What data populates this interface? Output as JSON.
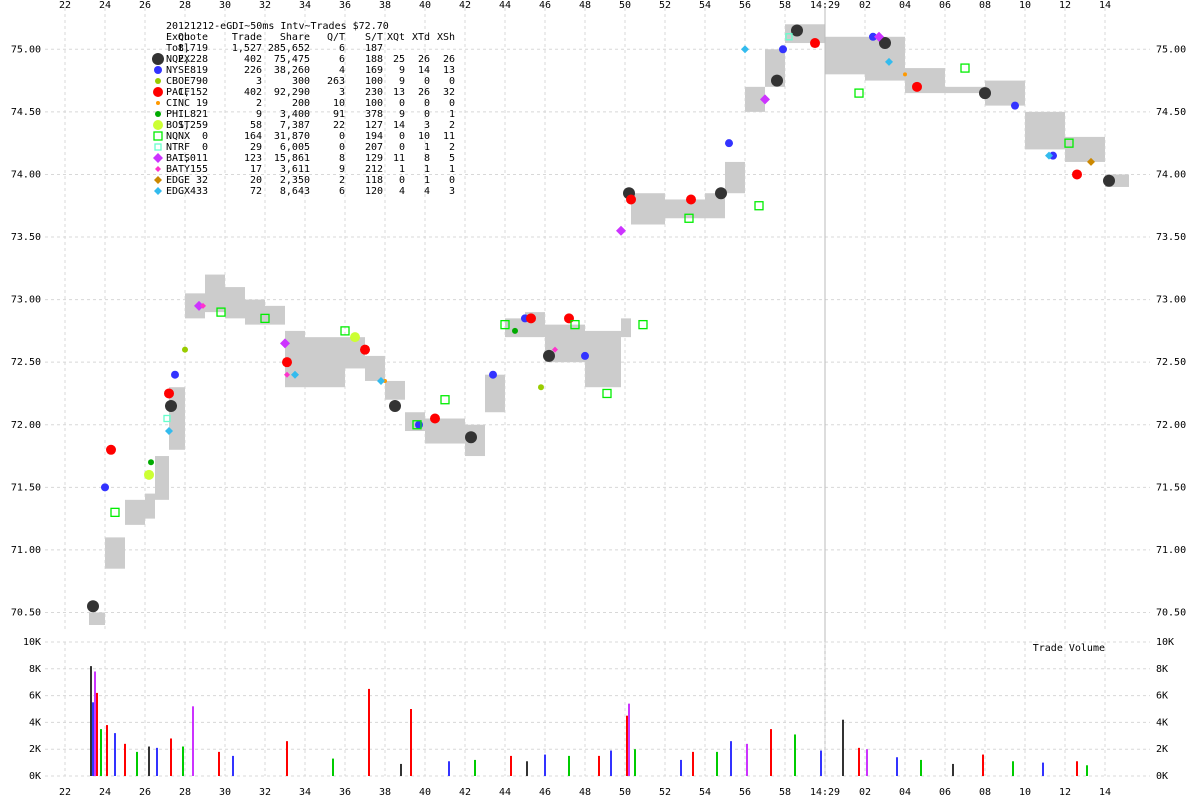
{
  "chart_data": [
    {
      "type": "scatter",
      "title": "20121212-eGDI~50ms Intv~Trades $72.70",
      "xlim": [
        21,
        76.25
      ],
      "xticks": [
        22,
        24,
        26,
        28,
        30,
        32,
        34,
        36,
        38,
        40,
        42,
        44,
        46,
        48,
        50,
        52,
        54,
        56,
        58,
        {
          "value": 60,
          "label": "14:29"
        },
        {
          "value": 62,
          "label": "02"
        },
        {
          "value": 64,
          "label": "04"
        },
        {
          "value": 66,
          "label": "06"
        },
        {
          "value": 68,
          "label": "08"
        },
        {
          "value": 70,
          "label": "10"
        },
        {
          "value": 72,
          "label": "12"
        },
        {
          "value": 74,
          "label": "14"
        }
      ],
      "marker_time": 60,
      "ylim": [
        70.36,
        75.33
      ],
      "yticks": [
        {
          "value": 70.5,
          "label": "70.50"
        },
        {
          "value": 71,
          "label": "71.00"
        },
        {
          "value": 71.5,
          "label": "71.50"
        },
        {
          "value": 72,
          "label": "72.00"
        },
        {
          "value": 72.5,
          "label": "72.50"
        },
        {
          "value": 73,
          "label": "73.00"
        },
        {
          "value": 73.5,
          "label": "73.50"
        },
        {
          "value": 74,
          "label": "74.00"
        },
        {
          "value": 74.5,
          "label": "74.50"
        },
        {
          "value": 75,
          "label": "75.00"
        }
      ],
      "grid": true,
      "band": {
        "color": "#cccccc",
        "x": [
          23.2,
          24,
          25,
          26,
          26.5,
          27.2,
          28,
          29,
          30,
          31,
          32,
          33,
          34,
          36,
          37,
          38,
          39,
          40,
          41,
          42,
          43,
          44,
          45,
          46,
          48,
          49.8,
          50.3,
          52,
          54,
          55,
          56,
          57,
          58,
          60,
          62,
          64,
          66,
          68,
          70,
          72,
          74,
          75
        ],
        "bid": [
          70.4,
          70.85,
          71.2,
          71.25,
          71.4,
          71.8,
          72.85,
          72.9,
          72.85,
          72.8,
          72.8,
          72.3,
          72.3,
          72.45,
          72.35,
          72.2,
          71.95,
          71.85,
          71.85,
          71.75,
          72.1,
          72.7,
          72.7,
          72.5,
          72.3,
          72.7,
          73.6,
          73.65,
          73.65,
          73.85,
          74.5,
          74.7,
          75.05,
          74.8,
          74.75,
          74.65,
          74.65,
          74.55,
          74.2,
          74.1,
          73.9,
          73.9
        ],
        "ask": [
          70.5,
          71.1,
          71.4,
          71.45,
          71.75,
          72.3,
          73.05,
          73.2,
          73.1,
          73.0,
          72.95,
          72.75,
          72.7,
          72.7,
          72.55,
          72.35,
          72.1,
          72.05,
          72.05,
          72.0,
          72.4,
          72.85,
          72.9,
          72.8,
          72.75,
          72.85,
          73.85,
          73.8,
          73.85,
          74.1,
          74.7,
          75.0,
          75.2,
          75.1,
          75.1,
          74.85,
          74.7,
          74.75,
          74.5,
          74.3,
          74.0,
          74.0
        ]
      },
      "legend_columns": [
        "Exch",
        "Quote",
        "Trade",
        "Share",
        "Q/T",
        "S/T",
        "XQt",
        "XTd",
        "XSh"
      ],
      "series": [
        {
          "cells": [
            "Totl",
            "8,719",
            "1,527",
            "285,652",
            "6",
            "187"
          ]
        },
        {
          "cells": [
            "NQEX",
            "2,228",
            "402",
            "75,475",
            "6",
            "188",
            "25",
            "26",
            "26"
          ],
          "color": "#333333",
          "marker": "circle",
          "size": 6,
          "x": [
            23.4,
            27.3,
            38.5,
            42.3,
            46.2,
            50.2,
            54.8,
            57.6,
            58.6,
            63,
            68,
            74.2
          ],
          "values": [
            70.55,
            72.15,
            72.15,
            71.9,
            72.55,
            73.85,
            73.85,
            74.75,
            75.15,
            75.05,
            74.65,
            73.95
          ]
        },
        {
          "cells": [
            "NYSE",
            "819",
            "226",
            "38,260",
            "4",
            "169",
            "9",
            "14",
            "13"
          ],
          "color": "#3333ff",
          "marker": "circle",
          "size": 4,
          "x": [
            24,
            27.5,
            39.7,
            43.4,
            45,
            48,
            55.2,
            57.9,
            62.4,
            69.5,
            71.4
          ],
          "values": [
            71.5,
            72.4,
            72.0,
            72.4,
            72.85,
            72.55,
            74.25,
            75.0,
            75.1,
            74.55,
            74.15
          ]
        },
        {
          "cells": [
            "CBOE",
            "790",
            "3",
            "300",
            "263",
            "100",
            "9",
            "0",
            "0"
          ],
          "color": "#99cc00",
          "marker": "circle",
          "size": 3,
          "x": [
            28,
            45.8
          ],
          "values": [
            72.6,
            72.3
          ]
        },
        {
          "cells": [
            "PACF",
            "1,152",
            "402",
            "92,290",
            "3",
            "230",
            "13",
            "26",
            "32"
          ],
          "color": "#ff0000",
          "marker": "circle",
          "size": 5,
          "x": [
            24.3,
            27.2,
            33.1,
            37,
            40.5,
            45.3,
            47.2,
            50.3,
            53.3,
            59.5,
            64.6,
            72.6
          ],
          "values": [
            71.8,
            72.25,
            72.5,
            72.6,
            72.05,
            72.85,
            72.85,
            73.8,
            73.8,
            75.05,
            74.7,
            74.0
          ]
        },
        {
          "cells": [
            "CINC",
            "19",
            "2",
            "200",
            "10",
            "100",
            "0",
            "0",
            "0"
          ],
          "color": "#ff9900",
          "marker": "circle",
          "size": 2,
          "x": [
            38,
            64
          ],
          "values": [
            72.35,
            74.8
          ]
        },
        {
          "cells": [
            "PHIL",
            "821",
            "9",
            "3,400",
            "91",
            "378",
            "9",
            "0",
            "1"
          ],
          "color": "#00aa00",
          "marker": "circle",
          "size": 3,
          "x": [
            26.3,
            44.5
          ],
          "values": [
            71.7,
            72.75
          ]
        },
        {
          "cells": [
            "BOST",
            "1,259",
            "58",
            "7,387",
            "22",
            "127",
            "14",
            "3",
            "2"
          ],
          "color": "#ccff33",
          "marker": "circle",
          "size": 5,
          "x": [
            26.2,
            36.5
          ],
          "values": [
            71.6,
            72.7
          ]
        },
        {
          "cells": [
            "NQNX",
            "0",
            "164",
            "31,870",
            "0",
            "194",
            "0",
            "10",
            "11"
          ],
          "color": "#00ee00",
          "marker": "square",
          "size": 4,
          "x": [
            24.5,
            29.8,
            32,
            36,
            39.6,
            41,
            44,
            47.5,
            49.1,
            50.9,
            53.2,
            56.7,
            61.7,
            67,
            72.2
          ],
          "values": [
            71.3,
            72.9,
            72.85,
            72.75,
            72.0,
            72.2,
            72.8,
            72.8,
            72.25,
            72.8,
            73.65,
            73.75,
            74.65,
            74.85,
            74.25
          ]
        },
        {
          "cells": [
            "NTRF",
            "0",
            "29",
            "6,005",
            "0",
            "207",
            "0",
            "1",
            "2"
          ],
          "color": "#66ffcc",
          "marker": "square",
          "size": 3,
          "x": [
            27.1,
            58.2
          ],
          "values": [
            72.05,
            75.1
          ]
        },
        {
          "cells": [
            "BATS",
            "1,011",
            "123",
            "15,861",
            "8",
            "129",
            "11",
            "8",
            "5"
          ],
          "color": "#cc33ff",
          "marker": "diamond",
          "size": 5,
          "x": [
            28.7,
            33,
            49.8,
            57,
            62.7
          ],
          "values": [
            72.95,
            72.65,
            73.55,
            74.6,
            75.1
          ]
        },
        {
          "cells": [
            "BATY",
            "155",
            "17",
            "3,611",
            "9",
            "212",
            "1",
            "1",
            "1"
          ],
          "color": "#ff33cc",
          "marker": "diamond",
          "size": 3,
          "x": [
            28.9,
            33.1,
            46.5
          ],
          "values": [
            72.95,
            72.4,
            72.6
          ]
        },
        {
          "cells": [
            "EDGE",
            "32",
            "20",
            "2,350",
            "2",
            "118",
            "0",
            "1",
            "0"
          ],
          "color": "#cc8800",
          "marker": "diamond",
          "size": 4,
          "x": [
            73.3
          ],
          "values": [
            74.1
          ]
        },
        {
          "cells": [
            "EDGX",
            "433",
            "72",
            "8,643",
            "6",
            "120",
            "4",
            "4",
            "3"
          ],
          "color": "#33bbee",
          "marker": "diamond",
          "size": 4,
          "x": [
            27.2,
            33.5,
            37.8,
            56,
            63.2,
            71.2
          ],
          "values": [
            71.95,
            72.4,
            72.35,
            75.0,
            74.9,
            74.15
          ]
        }
      ]
    },
    {
      "type": "bar",
      "title": "Trade Volume",
      "xlim": [
        21,
        76.25
      ],
      "xticks": [
        22,
        24,
        26,
        28,
        30,
        32,
        34,
        36,
        38,
        40,
        42,
        44,
        46,
        48,
        50,
        52,
        54,
        56,
        58,
        {
          "value": 60,
          "label": "14:29"
        },
        {
          "value": 62,
          "label": "02"
        },
        {
          "value": 64,
          "label": "04"
        },
        {
          "value": 66,
          "label": "06"
        },
        {
          "value": 68,
          "label": "08"
        },
        {
          "value": 70,
          "label": "10"
        },
        {
          "value": 72,
          "label": "12"
        },
        {
          "value": 74,
          "label": "14"
        }
      ],
      "ylim": [
        0,
        10000
      ],
      "yticks": [
        {
          "value": 0,
          "label": "0K"
        },
        {
          "value": 2000,
          "label": "2K"
        },
        {
          "value": 4000,
          "label": "4K"
        },
        {
          "value": 6000,
          "label": "6K"
        },
        {
          "value": 8000,
          "label": "8K"
        },
        {
          "value": 10000,
          "label": "10K"
        }
      ],
      "grid": true,
      "series": [
        {
          "color": "#ff0000",
          "x": [
            23.6,
            24.1,
            25,
            27.3,
            29.7,
            33.1,
            37.2,
            39.3,
            44.3,
            48.7,
            50.1,
            53.4,
            57.3,
            61.7,
            67.9,
            72.6
          ],
          "values": [
            6200,
            3800,
            2400,
            2800,
            1800,
            2600,
            6500,
            5000,
            1500,
            1500,
            4500,
            1800,
            3500,
            2100,
            1600,
            1100
          ]
        },
        {
          "color": "#3333ff",
          "x": [
            23.4,
            24.5,
            26.6,
            30.4,
            41.2,
            46,
            49.3,
            52.8,
            55.3,
            59.8,
            63.6,
            70.9
          ],
          "values": [
            5500,
            3200,
            2100,
            1500,
            1100,
            1600,
            1900,
            1200,
            2600,
            1900,
            1400,
            1000
          ]
        },
        {
          "color": "#00cc00",
          "x": [
            23.8,
            25.6,
            27.9,
            35.4,
            42.5,
            47.2,
            50.5,
            54.6,
            58.5,
            64.8,
            69.4,
            73.1
          ],
          "values": [
            3500,
            1800,
            2200,
            1300,
            1200,
            1500,
            2000,
            1800,
            3100,
            1200,
            1100,
            800
          ]
        },
        {
          "color": "#cc33ff",
          "x": [
            23.5,
            28.4,
            50.2,
            56.1,
            62.1
          ],
          "values": [
            7800,
            5200,
            5400,
            2400,
            2000
          ]
        },
        {
          "color": "#333333",
          "x": [
            23.3,
            26.2,
            38.8,
            45.1,
            60.9,
            66.4
          ],
          "values": [
            8200,
            2200,
            900,
            1100,
            4200,
            900
          ]
        }
      ]
    }
  ]
}
